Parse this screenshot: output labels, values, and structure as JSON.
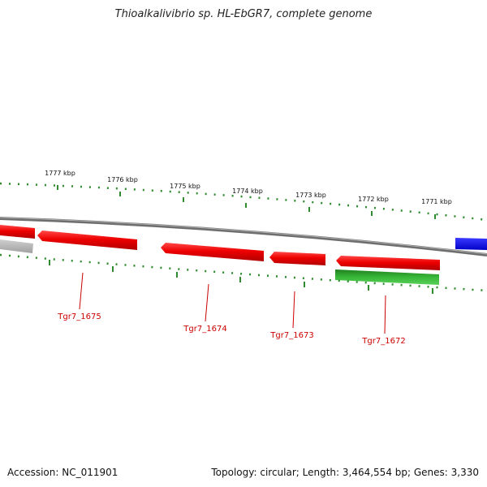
{
  "title": "Thioalkalivibrio sp. HL-EbGR7, complete genome",
  "footer": {
    "accession": "Accession: NC_011901",
    "summary": "Topology: circular; Length: 3,464,554 bp; Genes: 3,330"
  },
  "ruler_labels": [
    "1777 kbp",
    "1776 kbp",
    "1775 kbp",
    "1774 kbp",
    "1773 kbp",
    "1772 kbp",
    "1771 kbp"
  ],
  "gene_labels": [
    "Tgr7_1675",
    "Tgr7_1674",
    "Tgr7_1673",
    "Tgr7_1672"
  ],
  "colors": {
    "tick": "#2e8b2e",
    "backbone": "#7a7a7a",
    "gene_red": "#ee0000",
    "gene_green": "#2ea82e",
    "gene_gray": "#b4b4b4",
    "gene_blue": "#1010ee",
    "label_red": "#cc0000"
  }
}
